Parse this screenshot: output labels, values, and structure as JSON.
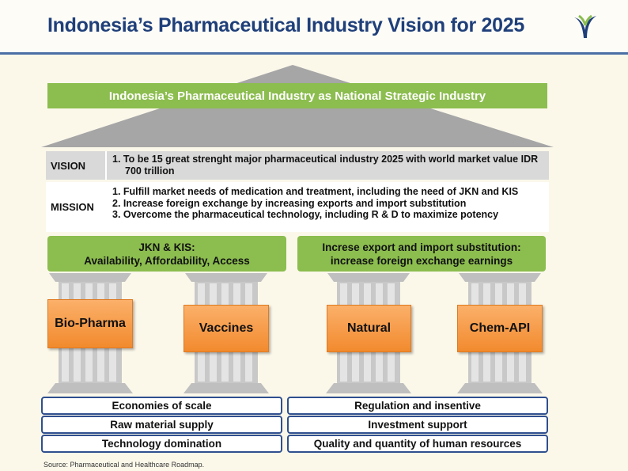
{
  "header": {
    "title": "Indonesia’s Pharmaceutical Industry Vision for 2025"
  },
  "roof_banner": "Indonesia’s Pharmaceutical Industry as National Strategic Industry",
  "vision": {
    "label": "VISION",
    "items": [
      "1. To be 15 great strenght major pharmaceutical industry 2025 with world market value IDR 700 trillion"
    ]
  },
  "mission": {
    "label": "MISSION",
    "items": [
      "1. Fulfill market needs of medication and treatment, including the need of JKN and KIS",
      "2. Increase foreign exchange by increasing exports and import substitution",
      "3. Overcome the pharmaceutical technology, including R & D to maximize potency"
    ]
  },
  "goals": [
    {
      "lines": [
        "JKN & KIS:",
        "Availability, Affordability, Access"
      ]
    },
    {
      "lines": [
        "Increse export and import substitution:",
        "increase foreign exchange earnings"
      ]
    }
  ],
  "pillars": [
    "Bio-Pharma",
    "Vaccines",
    "Natural",
    "Chem-API"
  ],
  "foundations": {
    "left": [
      "Economies of scale",
      "Raw material supply",
      "Technology domination"
    ],
    "right": [
      "Regulation and insentive",
      "Investment support",
      "Quality and quantity of human resources"
    ]
  },
  "source": "Source: Pharmaceutical and Healthcare Roadmap."
}
